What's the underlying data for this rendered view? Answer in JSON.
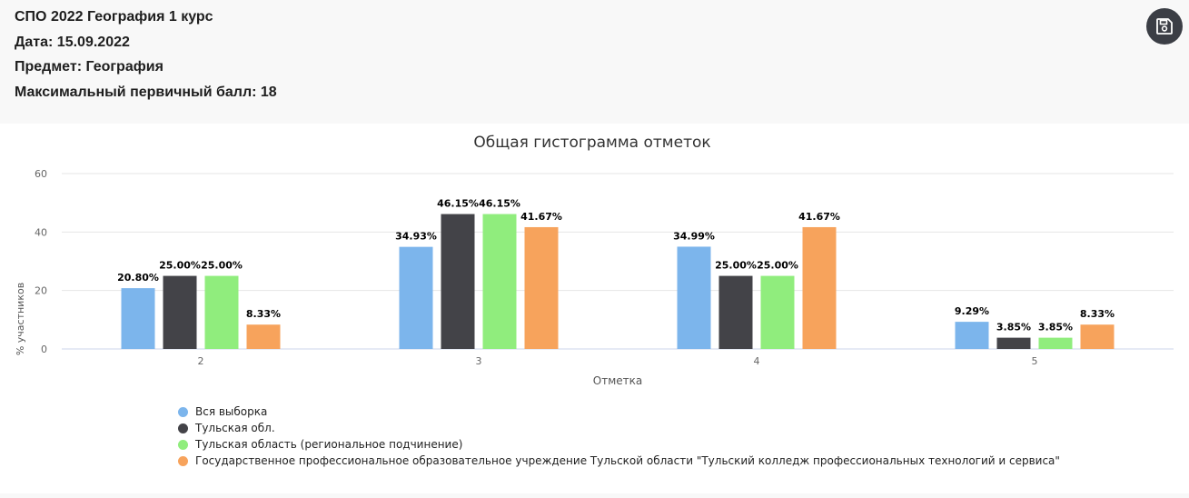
{
  "header": {
    "title": "СПО 2022 География 1 курс",
    "date": "Дата: 15.09.2022",
    "subject": "Предмет: География",
    "max_score": "Максимальный первичный балл: 18",
    "save_icon": "floppy-disk-icon"
  },
  "chart_data": {
    "type": "bar",
    "title": "Общая гистограмма отметок",
    "xlabel": "Отметка",
    "ylabel": "% участников",
    "categories": [
      "2",
      "3",
      "4",
      "5"
    ],
    "ylim": [
      0,
      60
    ],
    "yticks": [
      0,
      20,
      40,
      60
    ],
    "grid": true,
    "legend_position": "bottom-left",
    "series": [
      {
        "name": "Вся выборка",
        "color": "#7cb5ec",
        "values": [
          20.8,
          34.93,
          34.99,
          9.29
        ],
        "labels": [
          "20.80%",
          "34.93%",
          "34.99%",
          "9.29%"
        ]
      },
      {
        "name": "Тульская обл.",
        "color": "#434348",
        "values": [
          25.0,
          46.15,
          25.0,
          3.85
        ],
        "labels": [
          "25.00%",
          "46.15%",
          "25.00%",
          "3.85%"
        ]
      },
      {
        "name": "Тульская область (региональное подчинение)",
        "color": "#90ed7d",
        "values": [
          25.0,
          46.15,
          25.0,
          3.85
        ],
        "labels": [
          "25.00%",
          "46.15%",
          "25.00%",
          "3.85%"
        ]
      },
      {
        "name": "Государственное профессиональное образовательное учреждение Тульской области \"Тульский колледж профессиональных технологий и сервиса\"",
        "color": "#f7a35c",
        "values": [
          8.33,
          41.67,
          41.67,
          8.33
        ],
        "labels": [
          "8.33%",
          "41.67%",
          "41.67%",
          "8.33%"
        ]
      }
    ]
  }
}
